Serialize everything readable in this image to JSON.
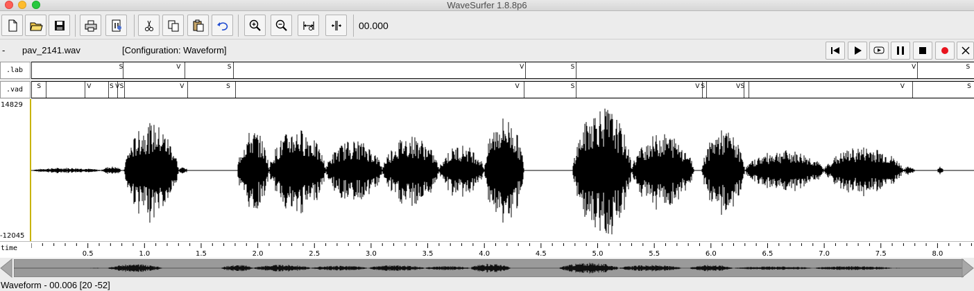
{
  "window": {
    "title": "WaveSurfer 1.8.8p6"
  },
  "toolbar": {
    "buttons": [
      {
        "name": "new-file-button",
        "icon": "new-file-icon"
      },
      {
        "name": "open-file-button",
        "icon": "open-folder-icon"
      },
      {
        "name": "save-button",
        "icon": "save-icon"
      },
      {
        "name": "print-button",
        "icon": "print-icon"
      },
      {
        "name": "properties-button",
        "icon": "properties-icon"
      },
      {
        "name": "cut-button",
        "icon": "scissors-icon"
      },
      {
        "name": "copy-button",
        "icon": "copy-icon"
      },
      {
        "name": "paste-button",
        "icon": "paste-icon"
      },
      {
        "name": "undo-button",
        "icon": "undo-icon"
      },
      {
        "name": "zoom-in-button",
        "icon": "zoom-in-icon"
      },
      {
        "name": "zoom-out-button",
        "icon": "zoom-out-icon"
      },
      {
        "name": "zoom-selection-button",
        "icon": "zoom-selection-icon"
      },
      {
        "name": "zoom-all-button",
        "icon": "zoom-all-icon"
      }
    ],
    "time_readout": "00.000"
  },
  "filerow": {
    "dash": "-",
    "filename": "pav_2141.wav",
    "configuration": "[Configuration: Waveform]"
  },
  "playback": {
    "buttons": [
      "go-to-start",
      "play",
      "play-loop",
      "pause",
      "stop",
      "record",
      "close"
    ],
    "record_color": "#e8141e"
  },
  "tiers": [
    {
      "name": ".lab",
      "labels": [
        {
          "t": 0.794,
          "text": "S"
        },
        {
          "t": 1.3,
          "text": "V"
        },
        {
          "t": 1.75,
          "text": "S"
        },
        {
          "t": 4.33,
          "text": "V"
        },
        {
          "t": 4.78,
          "text": "S"
        },
        {
          "t": 7.79,
          "text": "V"
        },
        {
          "t": 8.27,
          "text": "S"
        }
      ],
      "boundaries": [
        0.0,
        0.807,
        1.355,
        1.785,
        4.358,
        4.806,
        7.82
      ]
    },
    {
      "name": ".vad",
      "labels": [
        {
          "t": 0.07,
          "text": "S"
        },
        {
          "t": 0.51,
          "text": "V"
        },
        {
          "t": 0.71,
          "text": "S"
        },
        {
          "t": 0.76,
          "text": "V"
        },
        {
          "t": 0.8,
          "text": "S"
        },
        {
          "t": 1.33,
          "text": "V"
        },
        {
          "t": 1.74,
          "text": "S"
        },
        {
          "t": 4.29,
          "text": "V"
        },
        {
          "t": 4.78,
          "text": "S"
        },
        {
          "t": 5.88,
          "text": "V"
        },
        {
          "t": 5.93,
          "text": "S"
        },
        {
          "t": 6.24,
          "text": "V"
        },
        {
          "t": 6.28,
          "text": "S"
        },
        {
          "t": 7.69,
          "text": "V"
        },
        {
          "t": 8.28,
          "text": "S"
        }
      ],
      "boundaries": [
        0.0,
        0.13,
        0.47,
        0.68,
        0.76,
        0.82,
        1.38,
        1.8,
        4.35,
        4.81,
        5.92,
        5.96,
        6.29,
        6.33,
        7.78
      ]
    }
  ],
  "waveform": {
    "max_label": "14829",
    "min_label": "-12045",
    "color": "#000000",
    "cursor_color": "#c8b400",
    "envelope": [
      {
        "t0": 0.0,
        "t1": 0.62,
        "amp": 0.04
      },
      {
        "t0": 0.62,
        "t1": 0.8,
        "amp": 0.06
      },
      {
        "t0": 0.82,
        "t1": 1.3,
        "amp": 0.7
      },
      {
        "t0": 1.3,
        "t1": 1.38,
        "amp": 0.05
      },
      {
        "t0": 1.82,
        "t1": 2.1,
        "amp": 0.6
      },
      {
        "t0": 2.1,
        "t1": 2.6,
        "amp": 0.62
      },
      {
        "t0": 2.6,
        "t1": 3.1,
        "amp": 0.45
      },
      {
        "t0": 3.1,
        "t1": 3.6,
        "amp": 0.52
      },
      {
        "t0": 3.6,
        "t1": 4.0,
        "amp": 0.38
      },
      {
        "t0": 4.0,
        "t1": 4.35,
        "amp": 0.8
      },
      {
        "t0": 4.78,
        "t1": 5.3,
        "amp": 0.95
      },
      {
        "t0": 5.3,
        "t1": 5.85,
        "amp": 0.55
      },
      {
        "t0": 5.92,
        "t1": 6.3,
        "amp": 0.6
      },
      {
        "t0": 6.3,
        "t1": 7.0,
        "amp": 0.3
      },
      {
        "t0": 7.0,
        "t1": 7.7,
        "amp": 0.35
      },
      {
        "t0": 7.7,
        "t1": 7.8,
        "amp": 0.06
      },
      {
        "t0": 8.0,
        "t1": 8.05,
        "amp": 0.06
      }
    ]
  },
  "ruler": {
    "name": "time",
    "ticks": [
      "0.5",
      "1.0",
      "1.5",
      "2.0",
      "2.5",
      "3.0",
      "3.5",
      "4.0",
      "4.5",
      "5.0",
      "5.5",
      "6.0",
      "6.5",
      "7.0",
      "7.5",
      "8.0"
    ]
  },
  "status": {
    "text": "Waveform - 00.006 [20 -52]"
  }
}
